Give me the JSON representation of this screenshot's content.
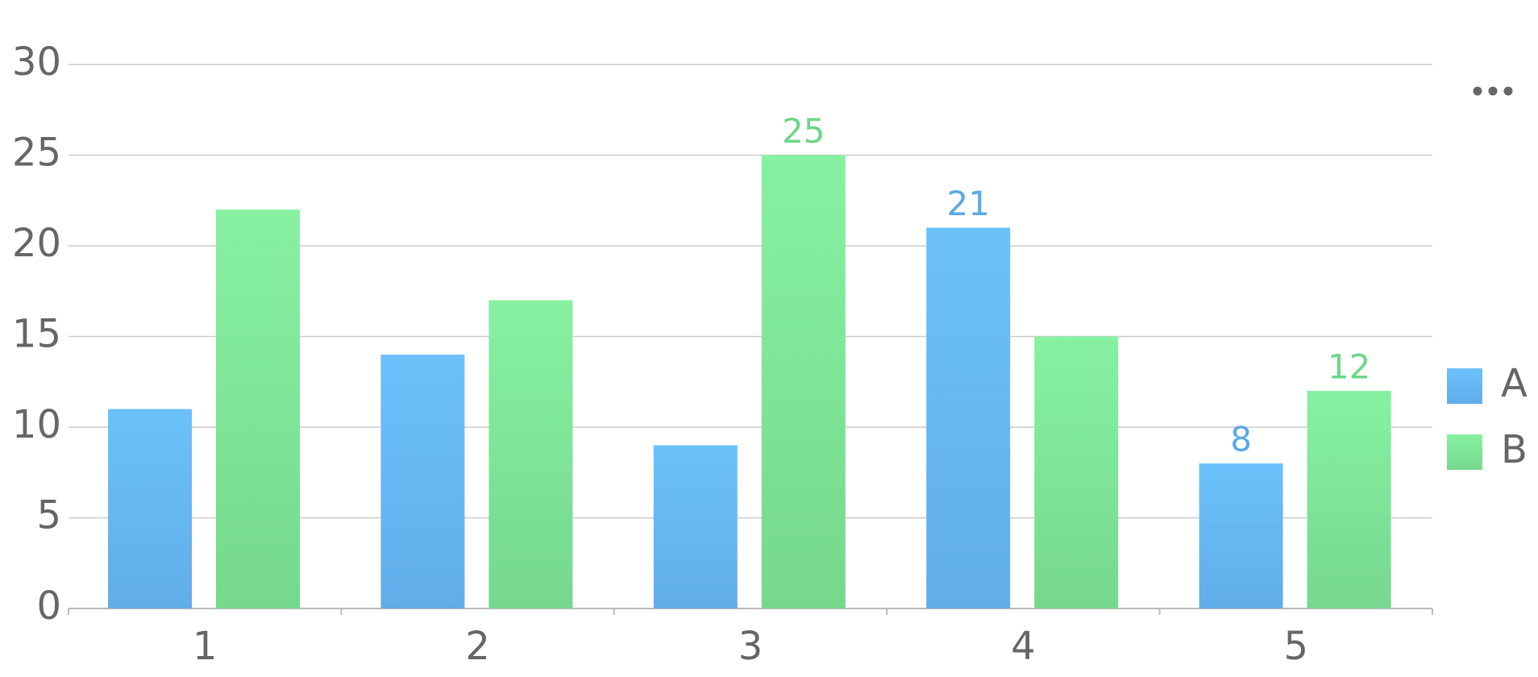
{
  "chart_data": {
    "type": "bar",
    "categories": [
      "1",
      "2",
      "3",
      "4",
      "5"
    ],
    "series": [
      {
        "name": "A",
        "color": "#6bbff8",
        "values": [
          11,
          14,
          9,
          21,
          8
        ],
        "value_labels": [
          null,
          null,
          null,
          "21",
          "8"
        ]
      },
      {
        "name": "B",
        "color": "#86efa0",
        "values": [
          22,
          17,
          25,
          15,
          12
        ],
        "value_labels": [
          null,
          null,
          "25",
          null,
          "12"
        ]
      }
    ],
    "ylim": [
      0,
      30
    ],
    "yticks": [
      0,
      5,
      10,
      15,
      20,
      25,
      30
    ],
    "grid": true,
    "legend": "right"
  }
}
